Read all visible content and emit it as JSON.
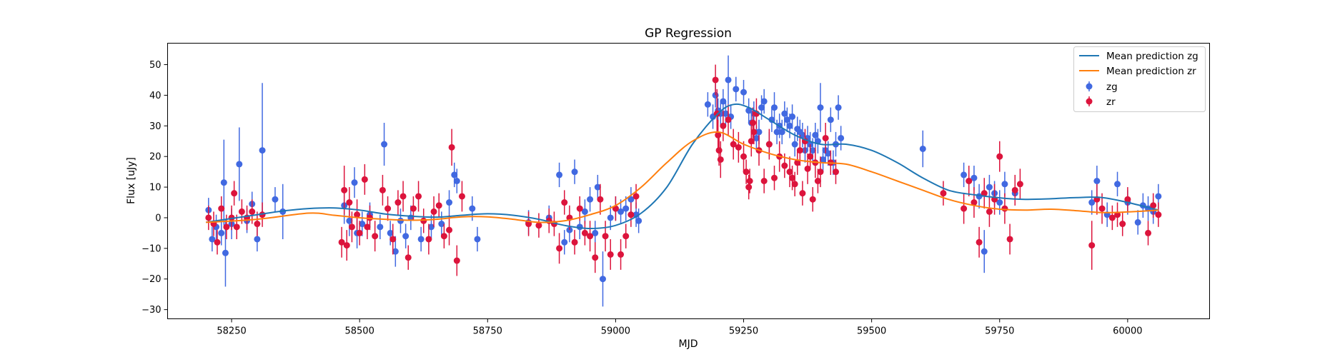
{
  "chart_data": {
    "type": "scatter",
    "title": "GP Regression",
    "xlabel": "MJD",
    "ylabel": "Flux [uJy]",
    "xlim": [
      58125,
      60160
    ],
    "ylim": [
      -33,
      57
    ],
    "xticks": [
      58250,
      58500,
      58750,
      59000,
      59250,
      59500,
      59750,
      60000
    ],
    "yticks": [
      -30,
      -20,
      -10,
      0,
      10,
      20,
      30,
      40,
      50
    ],
    "grid": false,
    "legend_position": "top-right",
    "colors": {
      "zg": "#4169e1",
      "zr": "#dc143c",
      "mean_zg": "#1f77b4",
      "mean_zr": "#ff7f0e"
    },
    "series": [
      {
        "name": "Mean prediction zg",
        "kind": "line",
        "color": "#1f77b4",
        "x": [
          58200,
          58300,
          58350,
          58400,
          58450,
          58500,
          58550,
          58600,
          58650,
          58700,
          58750,
          58800,
          58850,
          58900,
          58950,
          59000,
          59050,
          59100,
          59150,
          59200,
          59230,
          59260,
          59300,
          59350,
          59400,
          59450,
          59500,
          59550,
          59600,
          59650,
          59700,
          59750,
          59800,
          59850,
          59900,
          59950,
          60000,
          60060
        ],
        "y": [
          -1.5,
          1.0,
          2.2,
          3.0,
          3.2,
          2.5,
          1.2,
          0.5,
          0.2,
          0.8,
          1.3,
          0.8,
          -0.5,
          -2.5,
          -3.5,
          -2.5,
          1.5,
          10.0,
          24.0,
          34.0,
          37.0,
          36.0,
          32.0,
          27.0,
          24.0,
          24.0,
          22.0,
          18.0,
          13.0,
          9.0,
          7.5,
          6.5,
          6.0,
          6.2,
          6.6,
          6.6,
          5.0,
          2.5
        ]
      },
      {
        "name": "Mean prediction zr",
        "kind": "line",
        "color": "#ff7f0e",
        "x": [
          58200,
          58300,
          58400,
          58450,
          58500,
          58550,
          58600,
          58650,
          58700,
          58750,
          58800,
          58850,
          58900,
          58950,
          59000,
          59050,
          59100,
          59150,
          59200,
          59250,
          59300,
          59350,
          59400,
          59450,
          59500,
          59550,
          59600,
          59650,
          59700,
          59750,
          59800,
          59850,
          59900,
          59950,
          60000,
          60060
        ],
        "y": [
          -1.5,
          -0.5,
          1.5,
          0.8,
          0.0,
          -0.5,
          -0.8,
          -0.5,
          0.3,
          0.3,
          -0.5,
          -1.5,
          -1.0,
          1.0,
          4.0,
          10.0,
          18.0,
          25.0,
          28.0,
          24.0,
          21.0,
          19.0,
          18.0,
          17.5,
          15.0,
          12.0,
          9.0,
          6.0,
          4.0,
          2.8,
          2.5,
          2.8,
          2.3,
          1.7,
          1.9,
          2.5
        ]
      },
      {
        "name": "zg",
        "kind": "errorbar",
        "color": "#4169e1",
        "x": [
          58205,
          58212,
          58220,
          58230,
          58235,
          58238,
          58250,
          58265,
          58280,
          58290,
          58300,
          58310,
          58335,
          58350,
          58470,
          58480,
          58490,
          58495,
          58505,
          58520,
          58540,
          58548,
          58560,
          58570,
          58580,
          58590,
          58600,
          58620,
          58640,
          58660,
          58675,
          58685,
          58690,
          58720,
          58730,
          58830,
          58870,
          58890,
          58900,
          58910,
          58920,
          58930,
          58940,
          58950,
          58960,
          58965,
          58975,
          58990,
          59000,
          59010,
          59020,
          59030,
          59040,
          59045,
          59180,
          59190,
          59195,
          59200,
          59205,
          59210,
          59215,
          59220,
          59225,
          59235,
          59250,
          59260,
          59265,
          59270,
          59275,
          59280,
          59285,
          59290,
          59300,
          59305,
          59310,
          59315,
          59320,
          59325,
          59330,
          59335,
          59340,
          59345,
          59350,
          59355,
          59360,
          59365,
          59370,
          59375,
          59380,
          59385,
          59390,
          59395,
          59400,
          59405,
          59410,
          59415,
          59420,
          59425,
          59430,
          59435,
          59440,
          59600,
          59680,
          59690,
          59700,
          59710,
          59720,
          59730,
          59740,
          59750,
          59760,
          59780,
          59930,
          59940,
          59960,
          59980,
          60000,
          60020,
          60030,
          60040,
          60050,
          60060
        ],
        "y": [
          2.5,
          -7.0,
          -3.0,
          -5.0,
          11.5,
          -11.5,
          -2.0,
          17.5,
          -1.0,
          4.5,
          -7.0,
          22.0,
          6.0,
          2.0,
          4.0,
          -1.0,
          11.5,
          -5.0,
          -2.0,
          1.0,
          -3.0,
          24.0,
          -5.0,
          -11.0,
          -1.0,
          -6.0,
          0.0,
          -7.0,
          -3.0,
          -2.0,
          5.0,
          14.0,
          12.0,
          3.0,
          -7.0,
          -1.5,
          0.0,
          14.0,
          -8.0,
          -4.0,
          15.0,
          -3.0,
          2.0,
          6.0,
          -5.0,
          10.0,
          -20.0,
          0.0,
          3.0,
          2.0,
          3.0,
          6.0,
          1.0,
          -1.0,
          37.0,
          33.0,
          40.0,
          35.0,
          34.0,
          38.0,
          34.0,
          45.0,
          33.0,
          42.0,
          41.0,
          35.0,
          31.0,
          34.0,
          26.0,
          28.0,
          36.0,
          38.0,
          24.0,
          32.0,
          36.0,
          28.0,
          30.0,
          28.0,
          34.0,
          32.0,
          30.0,
          33.0,
          24.0,
          29.0,
          28.0,
          27.0,
          22.0,
          26.0,
          24.0,
          22.0,
          27.0,
          25.0,
          36.0,
          19.0,
          22.0,
          21.0,
          32.0,
          18.0,
          24.0,
          36.0,
          26.0,
          22.5,
          14.0,
          12.0,
          13.0,
          7.0,
          -11.0,
          10.0,
          8.0,
          5.0,
          11.0,
          8.0,
          5.0,
          12.0,
          1.0,
          11.0,
          5.0,
          -1.5,
          4.0,
          3.0,
          2.0,
          7.0
        ],
        "yerr": [
          4.0,
          4.0,
          4.0,
          4.0,
          14.0,
          11.0,
          5.0,
          12.0,
          4.0,
          4.0,
          4.0,
          22.0,
          4.0,
          9.0,
          6.0,
          5.0,
          5.0,
          5.0,
          4.0,
          4.0,
          4.0,
          7.0,
          4.0,
          5.0,
          4.0,
          4.0,
          4.0,
          4.0,
          4.0,
          4.0,
          4.0,
          4.0,
          4.0,
          4.0,
          4.0,
          4.0,
          4.0,
          4.0,
          4.0,
          4.0,
          4.0,
          4.0,
          4.0,
          4.0,
          4.0,
          4.0,
          9.0,
          4.0,
          4.0,
          4.0,
          4.0,
          4.0,
          4.0,
          4.0,
          4.0,
          4.0,
          4.0,
          4.0,
          4.0,
          4.0,
          4.0,
          8.0,
          4.0,
          4.0,
          4.0,
          4.0,
          4.0,
          4.0,
          4.0,
          4.0,
          4.0,
          4.0,
          4.0,
          4.0,
          5.0,
          4.0,
          4.0,
          4.0,
          4.0,
          4.0,
          4.0,
          4.0,
          4.0,
          4.0,
          4.0,
          4.0,
          4.0,
          4.0,
          4.0,
          4.0,
          4.0,
          4.0,
          8.0,
          4.0,
          4.0,
          4.0,
          4.0,
          4.0,
          4.0,
          4.0,
          4.0,
          6.0,
          4.0,
          4.0,
          4.0,
          4.0,
          7.0,
          4.0,
          4.0,
          4.0,
          4.0,
          4.0,
          4.0,
          5.0,
          4.0,
          4.0,
          4.0,
          4.0,
          4.0,
          4.0,
          4.0,
          4.0
        ]
      },
      {
        "name": "zr",
        "kind": "errorbar",
        "color": "#dc143c",
        "x": [
          58205,
          58215,
          58222,
          58230,
          58240,
          58250,
          58255,
          58260,
          58270,
          58280,
          58290,
          58300,
          58310,
          58465,
          58470,
          58475,
          58480,
          58485,
          58495,
          58500,
          58510,
          58515,
          58520,
          58530,
          58545,
          58555,
          58565,
          58575,
          58585,
          58595,
          58605,
          58615,
          58625,
          58635,
          58645,
          58655,
          58665,
          58675,
          58680,
          58690,
          58700,
          58830,
          58850,
          58870,
          58880,
          58890,
          58900,
          58910,
          58920,
          58930,
          58940,
          58950,
          58960,
          58970,
          58980,
          58990,
          59000,
          59010,
          59020,
          59030,
          59040,
          59195,
          59198,
          59200,
          59202,
          59205,
          59210,
          59220,
          59230,
          59240,
          59250,
          59255,
          59260,
          59262,
          59265,
          59268,
          59270,
          59275,
          59280,
          59290,
          59300,
          59310,
          59320,
          59330,
          59340,
          59345,
          59350,
          59355,
          59360,
          59365,
          59370,
          59375,
          59380,
          59385,
          59390,
          59395,
          59400,
          59410,
          59420,
          59430,
          59640,
          59680,
          59690,
          59700,
          59710,
          59720,
          59730,
          59740,
          59750,
          59760,
          59770,
          59780,
          59790,
          59930,
          59940,
          59950,
          59970,
          59980,
          59990,
          60000,
          60040,
          60050,
          60060
        ],
        "y": [
          0.0,
          -2.0,
          -8.0,
          3.0,
          -3.0,
          0.0,
          8.0,
          -3.0,
          2.0,
          0.0,
          2.0,
          -2.0,
          1.0,
          -8.0,
          9.0,
          -9.0,
          5.0,
          -3.0,
          1.0,
          -5.0,
          12.5,
          -3.0,
          0.0,
          -6.0,
          9.0,
          3.0,
          -7.0,
          5.0,
          7.0,
          -13.0,
          3.0,
          7.0,
          -1.0,
          -7.0,
          2.0,
          4.0,
          -6.0,
          -4.0,
          23.0,
          -14.0,
          7.0,
          -2.0,
          -2.5,
          -1.0,
          -2.0,
          -10.0,
          5.0,
          0.0,
          -8.0,
          3.0,
          -5.0,
          -6.0,
          -13.0,
          6.0,
          -6.0,
          -12.0,
          3.0,
          -12.0,
          -6.0,
          1.0,
          7.0,
          45.0,
          34.0,
          27.0,
          22.0,
          19.0,
          30.0,
          32.0,
          24.0,
          23.0,
          20.0,
          15.0,
          10.0,
          12.0,
          25.0,
          31.0,
          28.0,
          34.0,
          22.0,
          12.0,
          24.0,
          13.0,
          20.0,
          17.0,
          15.0,
          13.0,
          11.0,
          18.0,
          22.0,
          8.0,
          25.0,
          16.0,
          20.0,
          6.0,
          18.0,
          12.0,
          15.0,
          26.0,
          18.0,
          15.0,
          8.0,
          3.0,
          12.0,
          5.0,
          -8.0,
          8.0,
          2.0,
          6.0,
          20.0,
          3.0,
          -7.0,
          9.0,
          11.0,
          -9.0,
          6.0,
          3.0,
          0.0,
          1.0,
          -2.0,
          6.0,
          -5.0,
          4.0,
          1.0
        ],
        "yerr": [
          4.0,
          4.0,
          4.0,
          4.0,
          4.0,
          4.0,
          4.0,
          4.0,
          4.0,
          4.0,
          4.0,
          4.0,
          4.0,
          5.0,
          8.0,
          5.0,
          5.0,
          5.0,
          5.0,
          4.0,
          5.0,
          4.0,
          4.0,
          5.0,
          5.0,
          4.0,
          5.0,
          4.0,
          5.0,
          4.0,
          4.0,
          5.0,
          4.0,
          5.0,
          5.0,
          4.0,
          4.0,
          5.0,
          6.0,
          5.0,
          5.0,
          4.0,
          4.0,
          4.0,
          4.0,
          5.0,
          4.0,
          4.0,
          4.0,
          4.0,
          4.0,
          5.0,
          5.0,
          5.0,
          5.0,
          5.0,
          4.0,
          5.0,
          4.0,
          4.0,
          4.0,
          5.0,
          8.0,
          5.0,
          5.0,
          6.0,
          5.0,
          5.0,
          5.0,
          5.0,
          5.0,
          4.0,
          4.0,
          4.0,
          5.0,
          5.0,
          4.0,
          5.0,
          5.0,
          4.0,
          5.0,
          4.0,
          5.0,
          4.0,
          5.0,
          4.0,
          4.0,
          4.0,
          5.0,
          4.0,
          4.0,
          5.0,
          4.0,
          4.0,
          5.0,
          4.0,
          5.0,
          5.0,
          4.0,
          4.0,
          4.0,
          5.0,
          5.0,
          5.0,
          5.0,
          5.0,
          5.0,
          5.0,
          5.0,
          5.0,
          5.0,
          5.0,
          5.0,
          8.0,
          5.0,
          5.0,
          4.0,
          4.0,
          4.0,
          4.0,
          4.0,
          4.0,
          4.0
        ]
      }
    ]
  }
}
